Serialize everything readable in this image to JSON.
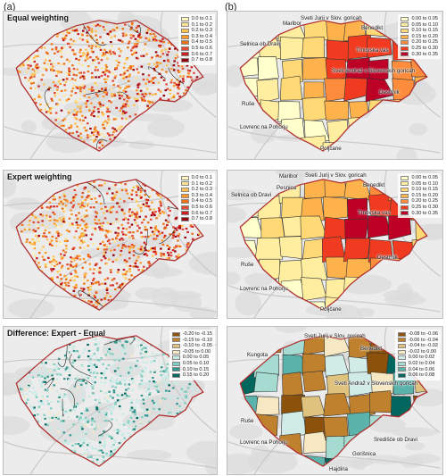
{
  "figure": {
    "col_a_label": "(a)",
    "col_b_label": "(b)"
  },
  "panels": {
    "a1": {
      "title": "Equal weighting",
      "legend": [
        "0.0 to 0.1",
        "0.1 to 0.2",
        "0.2 to 0.3",
        "0.3 to 0.4",
        "0.4 to 0.5",
        "0.5 to 0.6",
        "0.6 to 0.7",
        "0.7 to 0.8"
      ],
      "colors": [
        "#fff7bc",
        "#fee391",
        "#fec44f",
        "#fe9929",
        "#ec7014",
        "#e34a33",
        "#cc1f1f",
        "#99000d"
      ]
    },
    "a2": {
      "title": "Expert weighting",
      "legend": [
        "0.0 to 0.1",
        "0.1 to 0.2",
        "0.2 to 0.3",
        "0.3 to 0.4",
        "0.4 to 0.5",
        "0.5 to 0.6",
        "0.6 to 0.7",
        "0.7 to 0.8"
      ],
      "colors": [
        "#fff7bc",
        "#fee391",
        "#fec44f",
        "#fe9929",
        "#ec7014",
        "#e34a33",
        "#cc1f1f",
        "#99000d"
      ]
    },
    "a3": {
      "title": "Difference: Expert - Equal",
      "legend": [
        "-0.20 to -0.15",
        "-0.15 to -0.10",
        "-0.10 to -0.05",
        "-0.05 to 0.00",
        "0.00 to 0.05",
        "0.05 to 0.10",
        "0.10 to 0.15",
        "0.15 to 0.20"
      ],
      "colors": [
        "#8c510a",
        "#bf812d",
        "#dfc27d",
        "#f6e8c3",
        "#c7eae5",
        "#80cdc1",
        "#35978f",
        "#01665e"
      ]
    },
    "b1": {
      "legend": [
        "0.00 to 0.05",
        "0.05 to 0.10",
        "0.10 to 0.15",
        "0.15 to 0.20",
        "0.20 to 0.25",
        "0.25 to 0.30",
        "0.30 to 0.35"
      ],
      "colors": [
        "#ffffcc",
        "#ffeda0",
        "#fed976",
        "#feb24c",
        "#fd8d3c",
        "#f03b20",
        "#bd0026"
      ],
      "places": {
        "selnica": "Selnica ob Dravi",
        "maribor": "Maribor",
        "jurij": "Sveti Jurij v Slov. goricah",
        "benedikt": "Benedikt",
        "trnovska": "Trnovska vas",
        "andraz": "Sveti Andraž v Slovenskih goricah",
        "destrnik": "Destrnik",
        "ruse": "Ruše",
        "lovrenc": "Lovrenc na Pohorju",
        "poljcane": "Poljčane"
      }
    },
    "b2": {
      "legend": [
        "0.00 to 0.05",
        "0.05 to 0.10",
        "0.10 to 0.15",
        "0.15 to 0.20",
        "0.20 to 0.25",
        "0.25 to 0.30",
        "0.30 to 0.35"
      ],
      "colors": [
        "#ffffcc",
        "#ffeda0",
        "#fed976",
        "#feb24c",
        "#fd8d3c",
        "#f03b20",
        "#bd0026"
      ],
      "places": {
        "maribor": "Maribor",
        "pesnica": "Pesnica",
        "jurij": "Sveti Jurij v Slov. goricah",
        "benedikt": "Benedikt",
        "selnica": "Selnica ob Dravi",
        "trnovska": "Trnovska vas",
        "destrnik": "Destrnik",
        "ruse": "Ruše",
        "lovrenc": "Lovrenc na Pohorju",
        "poljcane": "Poljčane"
      }
    },
    "b3": {
      "legend": [
        "-0.08 to -0.06",
        "-0.06 to -0.04",
        "-0.04 to -0.02",
        "-0.02 to 0.00",
        "0.00 to 0.02",
        "0.02 to 0.04",
        "0.04 to 0.06",
        "0.06 to 0.08"
      ],
      "colors": [
        "#8c510a",
        "#bf812d",
        "#dfc27d",
        "#f6e8c3",
        "#d1ece6",
        "#a6dbd2",
        "#5ab4ac",
        "#01665e"
      ],
      "places": {
        "kungota": "Kungota",
        "jurij": "Sveti Jurij v Slov. goricah",
        "benedikt": "Benedikt",
        "andraz": "Sveti Andraž v Slovenskih goricah",
        "ruse": "Ruše",
        "lovrenc": "Lovrenc na Pohorju",
        "sredisce": "Središče ob Dravi",
        "gorisnica": "Gorišnica",
        "hajdina": "Hajdina"
      }
    }
  }
}
